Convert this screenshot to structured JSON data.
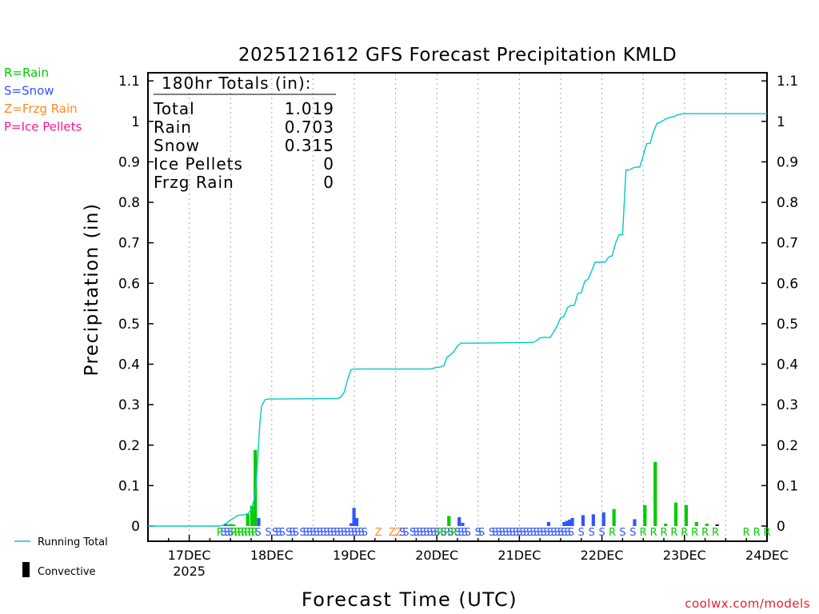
{
  "chart_data": {
    "type": "line",
    "title": "2025121612 GFS Forecast Precipitation KMLD",
    "xlabel": "Forecast Time (UTC)",
    "ylabel": "Precipitation (in)",
    "ylim": [
      0,
      1.1
    ],
    "yticks": [
      0,
      0.1,
      0.2,
      0.3,
      0.4,
      0.5,
      0.6,
      0.7,
      0.8,
      0.9,
      1,
      1.1
    ],
    "ytick_labels": [
      "0",
      "0.1",
      "0.2",
      "0.3",
      "0.4",
      "0.5",
      "0.6",
      "0.7",
      "0.8",
      "0.9",
      "1",
      "1.1"
    ],
    "xlim_hours": [
      -12,
      168
    ],
    "day_ticks": [
      {
        "hour": 0,
        "label": "17DEC",
        "sublabel": "2025"
      },
      {
        "hour": 24,
        "label": "18DEC",
        "sublabel": ""
      },
      {
        "hour": 48,
        "label": "19DEC",
        "sublabel": ""
      },
      {
        "hour": 72,
        "label": "20DEC",
        "sublabel": ""
      },
      {
        "hour": 96,
        "label": "21DEC",
        "sublabel": ""
      },
      {
        "hour": 120,
        "label": "22DEC",
        "sublabel": ""
      },
      {
        "hour": 144,
        "label": "23DEC",
        "sublabel": ""
      },
      {
        "hour": 168,
        "label": "24DEC",
        "sublabel": ""
      }
    ],
    "legend": {
      "types": [
        {
          "text": "R=Rain",
          "color": "#00cc00"
        },
        {
          "text": "S=Snow",
          "color": "#3355ff"
        },
        {
          "text": "Z=Frzg Rain",
          "color": "#ff8822"
        },
        {
          "text": "P=Ice Pellets",
          "color": "#ff1493"
        }
      ],
      "running_total_label": "Running Total",
      "convective_label": "Convective"
    },
    "totals": {
      "header": "180hr Totals (in):",
      "rows": [
        {
          "label": "Total",
          "value": "1.019"
        },
        {
          "label": "Rain",
          "value": "0.703"
        },
        {
          "label": "Snow",
          "value": "0.315"
        },
        {
          "label": "Ice Pellets",
          "value": "0"
        },
        {
          "label": "Frzg Rain",
          "value": "0"
        }
      ]
    },
    "running_total": {
      "name": "Running Total",
      "color": "#00c8c8",
      "x_hours": [
        -12,
        9,
        10,
        11,
        12,
        13,
        14,
        15,
        16,
        17,
        18,
        19,
        19.5,
        20,
        20.5,
        21,
        22,
        23,
        24,
        43,
        44,
        45,
        46,
        47,
        48,
        70,
        71,
        72,
        73,
        74,
        75,
        76,
        77,
        78,
        79,
        80,
        81,
        82,
        83,
        84,
        100,
        101,
        102,
        103,
        104,
        105,
        106,
        107,
        108,
        109,
        110,
        111,
        112,
        113,
        114,
        115,
        116,
        117,
        118,
        119,
        120,
        121,
        122,
        123,
        124,
        125,
        126,
        127,
        128,
        129,
        130,
        131,
        132,
        133,
        134,
        135,
        136,
        137,
        138,
        139,
        140,
        141,
        142,
        143,
        144,
        145,
        146,
        147,
        168
      ],
      "y": [
        0,
        0,
        0.003,
        0.008,
        0.015,
        0.02,
        0.026,
        0.027,
        0.028,
        0.03,
        0.04,
        0.07,
        0.11,
        0.18,
        0.25,
        0.295,
        0.312,
        0.314,
        0.314,
        0.315,
        0.318,
        0.33,
        0.36,
        0.386,
        0.388,
        0.388,
        0.39,
        0.392,
        0.393,
        0.396,
        0.418,
        0.423,
        0.432,
        0.445,
        0.452,
        0.452,
        0.452,
        0.452,
        0.452,
        0.452,
        0.454,
        0.458,
        0.465,
        0.466,
        0.466,
        0.466,
        0.48,
        0.495,
        0.515,
        0.518,
        0.54,
        0.545,
        0.545,
        0.575,
        0.576,
        0.605,
        0.61,
        0.63,
        0.652,
        0.652,
        0.652,
        0.653,
        0.665,
        0.668,
        0.7,
        0.72,
        0.72,
        0.88,
        0.88,
        0.885,
        0.887,
        0.887,
        0.915,
        0.945,
        0.946,
        0.975,
        0.995,
        0.998,
        1.003,
        1.008,
        1.01,
        1.012,
        1.016,
        1.018,
        1.019,
        1.019,
        1.019,
        1.019,
        1.019
      ]
    },
    "bars": [
      {
        "hour": 10.5,
        "value": 0.005,
        "type": "S",
        "convective": false
      },
      {
        "hour": 11.3,
        "value": 0.004,
        "type": "R",
        "convective": false
      },
      {
        "hour": 12.1,
        "value": 0.005,
        "type": "R",
        "convective": false
      },
      {
        "hour": 12.9,
        "value": 0.004,
        "type": "R",
        "convective": false
      },
      {
        "hour": 17.0,
        "value": 0.03,
        "type": "R",
        "convective": false
      },
      {
        "hour": 18.2,
        "value": 0.05,
        "type": "R",
        "convective": false
      },
      {
        "hour": 19.2,
        "value": 0.188,
        "type": "R",
        "convective": false
      },
      {
        "hour": 20.2,
        "value": 0.02,
        "type": "S",
        "convective": false
      },
      {
        "hour": 47.1,
        "value": 0.007,
        "type": "S",
        "convective": false
      },
      {
        "hour": 47.9,
        "value": 0.045,
        "type": "S",
        "convective": false
      },
      {
        "hour": 48.7,
        "value": 0.02,
        "type": "S",
        "convective": false
      },
      {
        "hour": 75.5,
        "value": 0.025,
        "type": "R",
        "convective": false
      },
      {
        "hour": 78.5,
        "value": 0.022,
        "type": "S",
        "convective": false
      },
      {
        "hour": 79.5,
        "value": 0.008,
        "type": "S",
        "convective": false
      },
      {
        "hour": 104.5,
        "value": 0.01,
        "type": "S",
        "convective": false
      },
      {
        "hour": 109.0,
        "value": 0.01,
        "type": "S",
        "convective": false
      },
      {
        "hour": 109.8,
        "value": 0.013,
        "type": "S",
        "convective": false
      },
      {
        "hour": 110.6,
        "value": 0.016,
        "type": "S",
        "convective": false
      },
      {
        "hour": 111.4,
        "value": 0.02,
        "type": "S",
        "convective": false
      },
      {
        "hour": 114.5,
        "value": 0.027,
        "type": "S",
        "convective": false
      },
      {
        "hour": 117.5,
        "value": 0.029,
        "type": "S",
        "convective": false
      },
      {
        "hour": 120.5,
        "value": 0.034,
        "type": "S",
        "convective": false
      },
      {
        "hour": 123.5,
        "value": 0.042,
        "type": "R",
        "convective": false
      },
      {
        "hour": 129.5,
        "value": 0.017,
        "type": "S",
        "convective": false
      },
      {
        "hour": 132.5,
        "value": 0.052,
        "type": "R",
        "convective": false
      },
      {
        "hour": 135.5,
        "value": 0.158,
        "type": "R",
        "convective": false
      },
      {
        "hour": 138.5,
        "value": 0.006,
        "type": "R",
        "convective": false
      },
      {
        "hour": 141.5,
        "value": 0.058,
        "type": "R",
        "convective": false
      },
      {
        "hour": 144.5,
        "value": 0.052,
        "type": "R",
        "convective": false
      },
      {
        "hour": 147.5,
        "value": 0.01,
        "type": "R",
        "convective": false
      },
      {
        "hour": 150.5,
        "value": 0.006,
        "type": "R",
        "convective": false
      },
      {
        "hour": 153.5,
        "value": 0.004,
        "type": "S",
        "convective": true
      }
    ],
    "type_markers": [
      {
        "hour": 9,
        "t": "R"
      },
      {
        "hour": 10,
        "t": "S"
      },
      {
        "hour": 11,
        "t": "S"
      },
      {
        "hour": 12,
        "t": "S"
      },
      {
        "hour": 13,
        "t": "R"
      },
      {
        "hour": 14,
        "t": "R"
      },
      {
        "hour": 15,
        "t": "R"
      },
      {
        "hour": 16,
        "t": "R"
      },
      {
        "hour": 17,
        "t": "R"
      },
      {
        "hour": 18,
        "t": "R"
      },
      {
        "hour": 19,
        "t": "R"
      },
      {
        "hour": 20,
        "t": "S"
      },
      {
        "hour": 23,
        "t": "S"
      },
      {
        "hour": 25,
        "t": "S"
      },
      {
        "hour": 26,
        "t": "S"
      },
      {
        "hour": 27,
        "t": "S"
      },
      {
        "hour": 29,
        "t": "S"
      },
      {
        "hour": 30,
        "t": "S"
      },
      {
        "hour": 31,
        "t": "S"
      },
      {
        "hour": 33,
        "t": "S"
      },
      {
        "hour": 34,
        "t": "S"
      },
      {
        "hour": 35,
        "t": "S"
      },
      {
        "hour": 36,
        "t": "S"
      },
      {
        "hour": 37,
        "t": "S"
      },
      {
        "hour": 38,
        "t": "S"
      },
      {
        "hour": 39,
        "t": "S"
      },
      {
        "hour": 40,
        "t": "S"
      },
      {
        "hour": 41,
        "t": "S"
      },
      {
        "hour": 42,
        "t": "S"
      },
      {
        "hour": 43,
        "t": "S"
      },
      {
        "hour": 44,
        "t": "S"
      },
      {
        "hour": 45,
        "t": "S"
      },
      {
        "hour": 46,
        "t": "S"
      },
      {
        "hour": 47,
        "t": "S"
      },
      {
        "hour": 48,
        "t": "S"
      },
      {
        "hour": 49,
        "t": "S"
      },
      {
        "hour": 50,
        "t": "S"
      },
      {
        "hour": 51,
        "t": "S"
      },
      {
        "hour": 55,
        "t": "Z"
      },
      {
        "hour": 59,
        "t": "Z"
      },
      {
        "hour": 61,
        "t": "Z"
      },
      {
        "hour": 62,
        "t": "S"
      },
      {
        "hour": 63,
        "t": "S"
      },
      {
        "hour": 65,
        "t": "S"
      },
      {
        "hour": 66,
        "t": "S"
      },
      {
        "hour": 67,
        "t": "S"
      },
      {
        "hour": 68,
        "t": "S"
      },
      {
        "hour": 69,
        "t": "S"
      },
      {
        "hour": 70,
        "t": "S"
      },
      {
        "hour": 71,
        "t": "S"
      },
      {
        "hour": 72,
        "t": "S"
      },
      {
        "hour": 73,
        "t": "R"
      },
      {
        "hour": 74,
        "t": "S"
      },
      {
        "hour": 75,
        "t": "R"
      },
      {
        "hour": 76,
        "t": "S"
      },
      {
        "hour": 77,
        "t": "R"
      },
      {
        "hour": 78,
        "t": "S"
      },
      {
        "hour": 79,
        "t": "S"
      },
      {
        "hour": 80,
        "t": "S"
      },
      {
        "hour": 81,
        "t": "S"
      },
      {
        "hour": 84,
        "t": "S"
      },
      {
        "hour": 85,
        "t": "S"
      },
      {
        "hour": 88,
        "t": "S"
      },
      {
        "hour": 89,
        "t": "S"
      },
      {
        "hour": 90,
        "t": "S"
      },
      {
        "hour": 91,
        "t": "S"
      },
      {
        "hour": 92,
        "t": "S"
      },
      {
        "hour": 93,
        "t": "S"
      },
      {
        "hour": 94,
        "t": "S"
      },
      {
        "hour": 95,
        "t": "S"
      },
      {
        "hour": 96,
        "t": "S"
      },
      {
        "hour": 97,
        "t": "S"
      },
      {
        "hour": 98,
        "t": "S"
      },
      {
        "hour": 99,
        "t": "S"
      },
      {
        "hour": 100,
        "t": "S"
      },
      {
        "hour": 101,
        "t": "S"
      },
      {
        "hour": 102,
        "t": "S"
      },
      {
        "hour": 103,
        "t": "S"
      },
      {
        "hour": 104,
        "t": "S"
      },
      {
        "hour": 105,
        "t": "S"
      },
      {
        "hour": 106,
        "t": "S"
      },
      {
        "hour": 107,
        "t": "S"
      },
      {
        "hour": 108,
        "t": "S"
      },
      {
        "hour": 109,
        "t": "S"
      },
      {
        "hour": 110,
        "t": "S"
      },
      {
        "hour": 111,
        "t": "S"
      },
      {
        "hour": 114,
        "t": "S"
      },
      {
        "hour": 117,
        "t": "S"
      },
      {
        "hour": 120,
        "t": "S"
      },
      {
        "hour": 123,
        "t": "R"
      },
      {
        "hour": 126,
        "t": "S"
      },
      {
        "hour": 129,
        "t": "S"
      },
      {
        "hour": 132,
        "t": "R"
      },
      {
        "hour": 135,
        "t": "R"
      },
      {
        "hour": 138,
        "t": "R"
      },
      {
        "hour": 141,
        "t": "R"
      },
      {
        "hour": 144,
        "t": "R"
      },
      {
        "hour": 147,
        "t": "R"
      },
      {
        "hour": 150,
        "t": "R"
      },
      {
        "hour": 153,
        "t": "R"
      },
      {
        "hour": 162,
        "t": "R"
      },
      {
        "hour": 165,
        "t": "R"
      },
      {
        "hour": 168,
        "t": "R"
      }
    ],
    "type_colors": {
      "R": "#00cc00",
      "S": "#3355ff",
      "Z": "#ff8822",
      "P": "#ff1493"
    },
    "watermark": "coolwx.com/models"
  }
}
